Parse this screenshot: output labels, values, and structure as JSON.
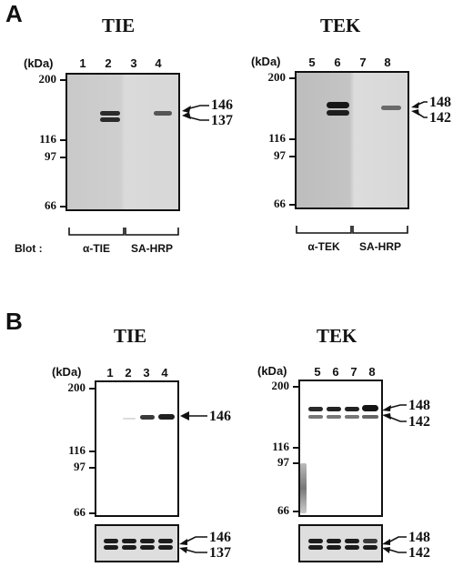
{
  "panel_a": {
    "letter": "A",
    "tie": {
      "title": "TIE",
      "kda": "(kDa)",
      "lanes": [
        "1",
        "2",
        "3",
        "4"
      ],
      "mw_ticks": [
        "200",
        "116",
        "97",
        "66"
      ],
      "markers": [
        "146",
        "137"
      ],
      "blot_label": "Blot :",
      "blot_groups": [
        "α-TIE",
        "SA-HRP"
      ]
    },
    "tek": {
      "title": "TEK",
      "kda": "(kDa)",
      "lanes": [
        "5",
        "6",
        "7",
        "8"
      ],
      "mw_ticks": [
        "200",
        "116",
        "97",
        "66"
      ],
      "markers": [
        "148",
        "142"
      ],
      "blot_groups": [
        "α-TEK",
        "SA-HRP"
      ]
    }
  },
  "panel_b": {
    "letter": "B",
    "tie": {
      "title": "TIE",
      "kda": "(kDa)",
      "lanes": [
        "1",
        "2",
        "3",
        "4"
      ],
      "mw_ticks": [
        "200",
        "116",
        "97",
        "66"
      ],
      "marker": "146",
      "lower_markers": [
        "146",
        "137"
      ]
    },
    "tek": {
      "title": "TEK",
      "kda": "(kDa)",
      "lanes": [
        "5",
        "6",
        "7",
        "8"
      ],
      "mw_ticks": [
        "200",
        "116",
        "97",
        "66"
      ],
      "markers": [
        "148",
        "142"
      ],
      "lower_markers": [
        "148",
        "142"
      ]
    }
  }
}
